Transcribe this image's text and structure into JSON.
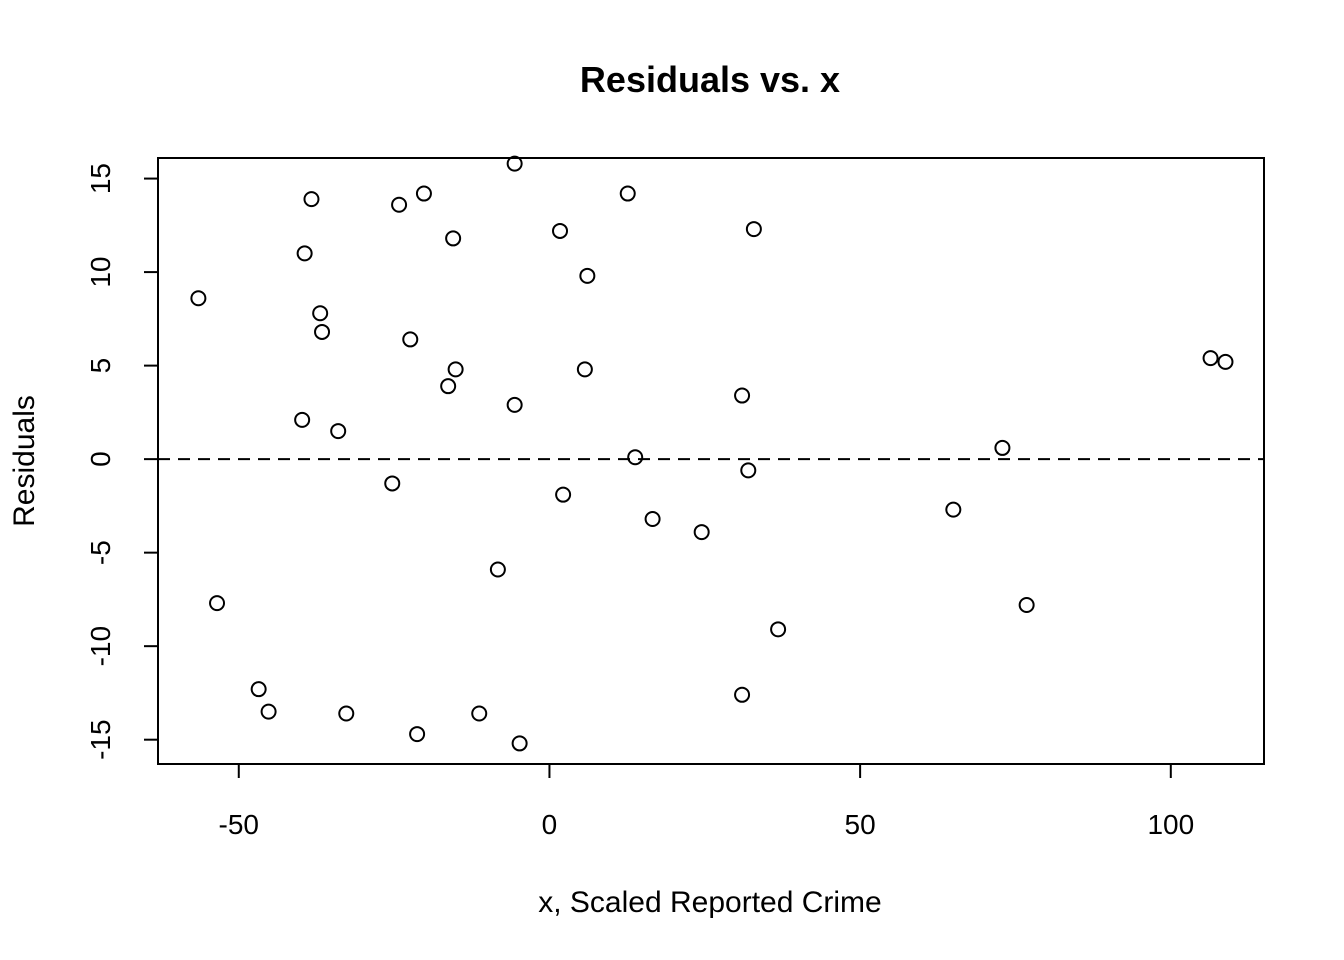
{
  "chart_data": {
    "type": "scatter",
    "title": "Residuals vs. x",
    "xlabel": "x, Scaled Reported Crime",
    "ylabel": "Residuals",
    "xlim": [
      -63,
      115
    ],
    "ylim": [
      -16.3,
      16.1
    ],
    "xticks": [
      -50,
      0,
      50,
      100
    ],
    "yticks": [
      -15,
      -10,
      -5,
      0,
      5,
      10,
      15
    ],
    "reference_line": {
      "y": 0,
      "style": "dashed"
    },
    "grid": false,
    "legend": "none",
    "points": [
      {
        "x": -56.5,
        "y": 8.6
      },
      {
        "x": -53.5,
        "y": -7.7
      },
      {
        "x": -46.8,
        "y": -12.3
      },
      {
        "x": -45.2,
        "y": -13.5
      },
      {
        "x": -39.8,
        "y": 2.1
      },
      {
        "x": -39.4,
        "y": 11.0
      },
      {
        "x": -38.3,
        "y": 13.9
      },
      {
        "x": -36.9,
        "y": 7.8
      },
      {
        "x": -36.6,
        "y": 6.8
      },
      {
        "x": -34.0,
        "y": 1.5
      },
      {
        "x": -32.7,
        "y": -13.6
      },
      {
        "x": -25.3,
        "y": -1.3
      },
      {
        "x": -24.2,
        "y": 13.6
      },
      {
        "x": -22.4,
        "y": 6.4
      },
      {
        "x": -21.3,
        "y": -14.7
      },
      {
        "x": -20.2,
        "y": 14.2
      },
      {
        "x": -16.3,
        "y": 3.9
      },
      {
        "x": -15.5,
        "y": 11.8
      },
      {
        "x": -15.1,
        "y": 4.8
      },
      {
        "x": -11.3,
        "y": -13.6
      },
      {
        "x": -8.3,
        "y": -5.9
      },
      {
        "x": -5.6,
        "y": 2.9
      },
      {
        "x": -5.6,
        "y": 15.8
      },
      {
        "x": -4.8,
        "y": -15.2
      },
      {
        "x": 1.7,
        "y": 12.2
      },
      {
        "x": 2.2,
        "y": -1.9
      },
      {
        "x": 5.7,
        "y": 4.8
      },
      {
        "x": 6.1,
        "y": 9.8
      },
      {
        "x": 12.6,
        "y": 14.2
      },
      {
        "x": 13.8,
        "y": 0.1
      },
      {
        "x": 16.6,
        "y": -3.2
      },
      {
        "x": 24.5,
        "y": -3.9
      },
      {
        "x": 31.0,
        "y": 3.4
      },
      {
        "x": 31.0,
        "y": -12.6
      },
      {
        "x": 32.0,
        "y": -0.6
      },
      {
        "x": 32.9,
        "y": 12.3
      },
      {
        "x": 36.8,
        "y": -9.1
      },
      {
        "x": 65.0,
        "y": -2.7
      },
      {
        "x": 72.9,
        "y": 0.6
      },
      {
        "x": 76.8,
        "y": -7.8
      },
      {
        "x": 106.4,
        "y": 5.4
      },
      {
        "x": 108.8,
        "y": 5.2
      }
    ]
  }
}
